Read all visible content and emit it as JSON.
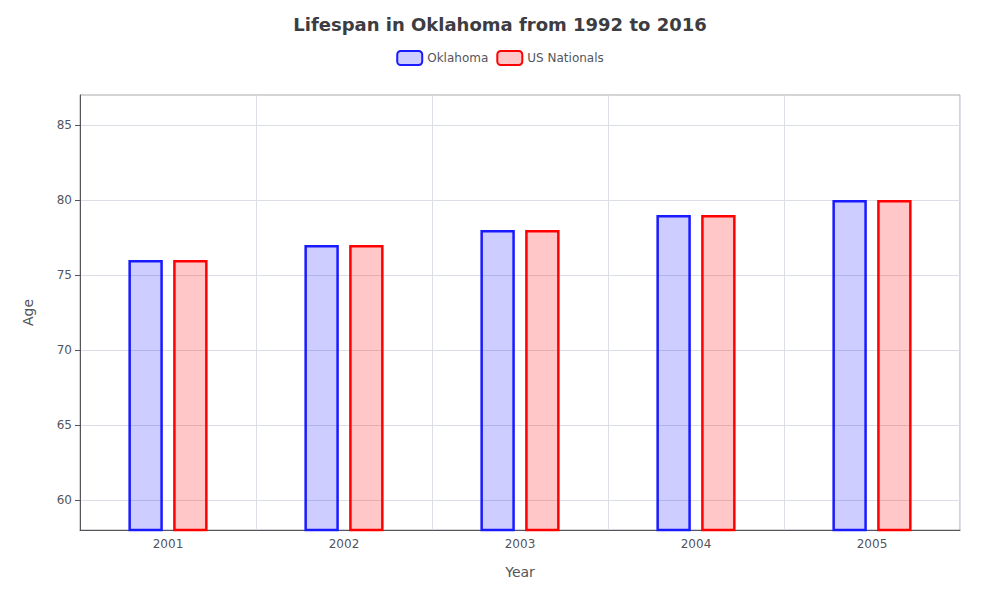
{
  "chart_data": {
    "type": "bar",
    "title": "Lifespan in Oklahoma from 1992 to 2016",
    "xlabel": "Year",
    "ylabel": "Age",
    "categories": [
      "2001",
      "2002",
      "2003",
      "2004",
      "2005"
    ],
    "series": [
      {
        "name": "Oklahoma",
        "color": "#1a1aff",
        "values": [
          76,
          77,
          78,
          79,
          80
        ]
      },
      {
        "name": "US Nationals",
        "color": "#ff0000",
        "values": [
          76,
          77,
          78,
          79,
          80
        ]
      }
    ],
    "ylim": [
      58,
      87
    ],
    "yticks": [
      60,
      65,
      70,
      75,
      80,
      85
    ],
    "grid": true,
    "legend": "top"
  }
}
